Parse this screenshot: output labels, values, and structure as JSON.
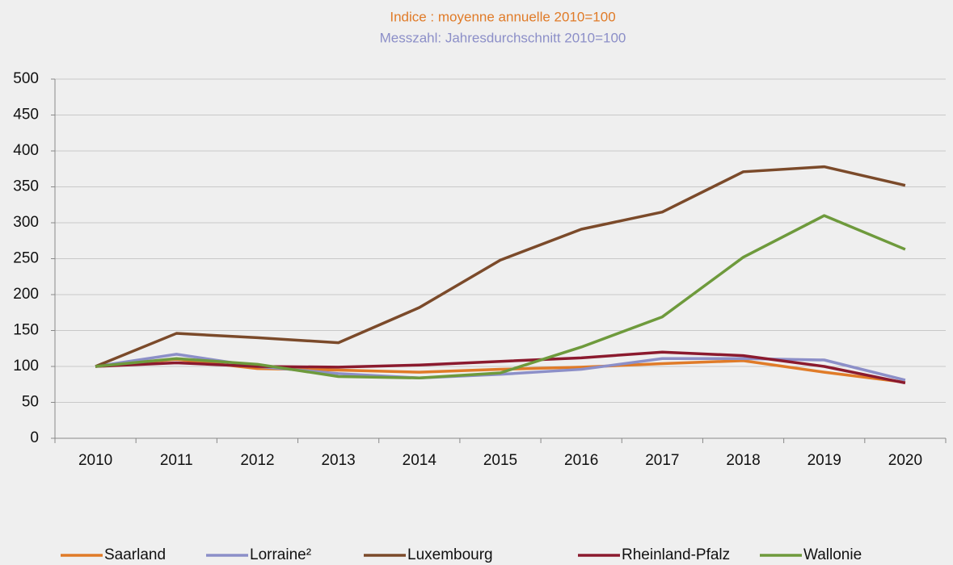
{
  "chart_data": {
    "type": "line",
    "title": "Indice : moyenne annuelle 2010=100",
    "title_color": "#e07b28",
    "subtitle": "Messzahl: Jahresdurchschnitt 2010=100",
    "subtitle_color": "#8c8fc8",
    "categories": [
      "2010",
      "2011",
      "2012",
      "2013",
      "2014",
      "2015",
      "2016",
      "2017",
      "2018",
      "2019",
      "2020"
    ],
    "series": [
      {
        "name": "Saarland",
        "color": "#e07b28",
        "values": [
          100,
          110,
          97,
          95,
          92,
          96,
          99,
          104,
          108,
          92,
          78
        ]
      },
      {
        "name": "Lorraine²",
        "color": "#8c8fc8",
        "values": [
          100,
          117,
          100,
          90,
          84,
          89,
          96,
          111,
          111,
          109,
          81
        ]
      },
      {
        "name": "Luxembourg",
        "color": "#7b4a2a",
        "values": [
          100,
          146,
          140,
          133,
          182,
          248,
          291,
          315,
          371,
          378,
          352
        ]
      },
      {
        "name": "Rheinland-Pfalz",
        "color": "#8b1a2e",
        "values": [
          100,
          105,
          100,
          99,
          102,
          107,
          112,
          120,
          115,
          100,
          77
        ]
      },
      {
        "name": "Wallonie",
        "color": "#6e9a3c",
        "values": [
          100,
          111,
          103,
          86,
          84,
          91,
          127,
          169,
          252,
          310,
          263
        ]
      }
    ],
    "ylim": [
      0,
      500
    ],
    "yticks": [
      0,
      50,
      100,
      150,
      200,
      250,
      300,
      350,
      400,
      450,
      500
    ],
    "grid": true,
    "legend": "bottom"
  }
}
